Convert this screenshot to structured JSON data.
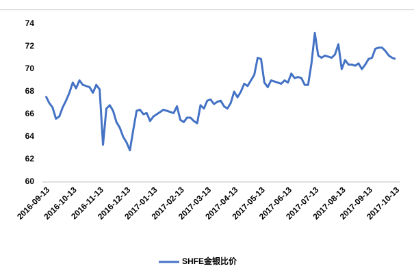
{
  "chart_data": {
    "type": "line",
    "categories": [
      "2016-09-13",
      null,
      null,
      null,
      null,
      null,
      null,
      null,
      "2016-10-13",
      null,
      null,
      null,
      null,
      null,
      null,
      null,
      "2016-11-13",
      null,
      null,
      null,
      null,
      null,
      null,
      null,
      "2016-12-13",
      null,
      null,
      null,
      null,
      null,
      null,
      null,
      "2017-01-13",
      null,
      null,
      null,
      null,
      null,
      null,
      null,
      "2017-02-13",
      null,
      null,
      null,
      null,
      null,
      null,
      null,
      "2017-03-13",
      null,
      null,
      null,
      null,
      null,
      null,
      null,
      "2017-04-13",
      null,
      null,
      null,
      null,
      null,
      null,
      null,
      "2017-05-13",
      null,
      null,
      null,
      null,
      null,
      null,
      null,
      "2017-06-13",
      null,
      null,
      null,
      null,
      null,
      null,
      null,
      "2017-07-13",
      null,
      null,
      null,
      null,
      null,
      null,
      null,
      "2017-08-13",
      null,
      null,
      null,
      null,
      null,
      null,
      null,
      "2017-09-13",
      null,
      null,
      null,
      null,
      null,
      null,
      null,
      "2017-10-13"
    ],
    "series": [
      {
        "name": "SHFE金银比价",
        "color": "#4472c4",
        "values": [
          67.6,
          67.0,
          66.6,
          65.6,
          65.8,
          66.6,
          67.2,
          67.9,
          68.8,
          68.3,
          69.0,
          68.6,
          68.5,
          68.4,
          67.9,
          68.6,
          68.2,
          63.3,
          66.5,
          66.8,
          66.3,
          65.3,
          64.8,
          64.0,
          63.5,
          62.8,
          64.6,
          66.3,
          66.4,
          66.0,
          66.1,
          65.4,
          65.8,
          66.0,
          66.2,
          66.4,
          66.3,
          66.2,
          66.1,
          66.7,
          65.5,
          65.3,
          65.7,
          65.7,
          65.4,
          65.2,
          66.8,
          66.5,
          67.2,
          67.3,
          66.9,
          67.1,
          67.2,
          66.7,
          66.5,
          67.0,
          68.0,
          67.5,
          68.0,
          68.7,
          68.5,
          69.0,
          69.5,
          71.0,
          70.9,
          68.8,
          68.4,
          69.0,
          68.9,
          68.8,
          68.7,
          69.0,
          68.8,
          69.6,
          69.2,
          69.3,
          69.2,
          68.6,
          68.6,
          70.5,
          73.2,
          71.2,
          71.0,
          71.2,
          71.1,
          71.0,
          71.3,
          72.2,
          70.0,
          70.8,
          70.4,
          70.4,
          70.3,
          70.5,
          70.0,
          70.4,
          70.9,
          71.0,
          71.8,
          71.9,
          71.9,
          71.6,
          71.2,
          71.0,
          70.9
        ]
      }
    ],
    "ylim": [
      60,
      74
    ],
    "yticks": [
      60,
      62,
      64,
      66,
      68,
      70,
      72,
      74
    ],
    "grid": false,
    "legend": "bottom"
  }
}
